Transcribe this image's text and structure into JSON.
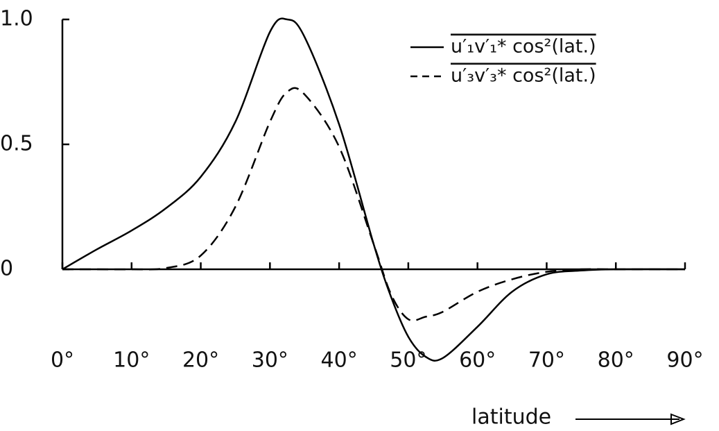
{
  "chart_data": {
    "type": "line",
    "xlabel": "latitude",
    "x": [
      0,
      5,
      10,
      15,
      20,
      25,
      30,
      32.5,
      35,
      40,
      45,
      47.5,
      50,
      52.5,
      55,
      60,
      65,
      70,
      75,
      80,
      90
    ],
    "series": [
      {
        "name": "u′₁v′₁* cos²(lat.)",
        "color": "#000000",
        "dash": "solid",
        "values": [
          0,
          0.08,
          0.155,
          0.245,
          0.37,
          0.59,
          0.95,
          1.0,
          0.93,
          0.58,
          0.1,
          -0.11,
          -0.27,
          -0.35,
          -0.355,
          -0.23,
          -0.09,
          -0.02,
          -0.005,
          0,
          0
        ]
      },
      {
        "name": "u′₃v′₃* cos²(lat.)",
        "color": "#000000",
        "dash": "dashed",
        "values": [
          0,
          0,
          0,
          0.005,
          0.055,
          0.25,
          0.59,
          0.71,
          0.7,
          0.49,
          0.1,
          -0.1,
          -0.2,
          -0.19,
          -0.17,
          -0.09,
          -0.04,
          -0.01,
          0,
          0,
          0
        ]
      }
    ],
    "xlim": [
      0,
      90
    ],
    "xticks": [
      {
        "value": 0,
        "label": "0°"
      },
      {
        "value": 10,
        "label": "10°"
      },
      {
        "value": 20,
        "label": "20°"
      },
      {
        "value": 30,
        "label": "30°"
      },
      {
        "value": 40,
        "label": "40°"
      },
      {
        "value": 50,
        "label": "50°"
      },
      {
        "value": 60,
        "label": "60°"
      },
      {
        "value": 70,
        "label": "70°"
      },
      {
        "value": 80,
        "label": "80°"
      },
      {
        "value": 90,
        "label": "90°"
      }
    ],
    "ylim": [
      -0.4,
      1.0
    ],
    "yticks": [
      0,
      0.5,
      {
        "value": 1.0,
        "label": "1.0"
      }
    ],
    "legend": "upper right"
  }
}
